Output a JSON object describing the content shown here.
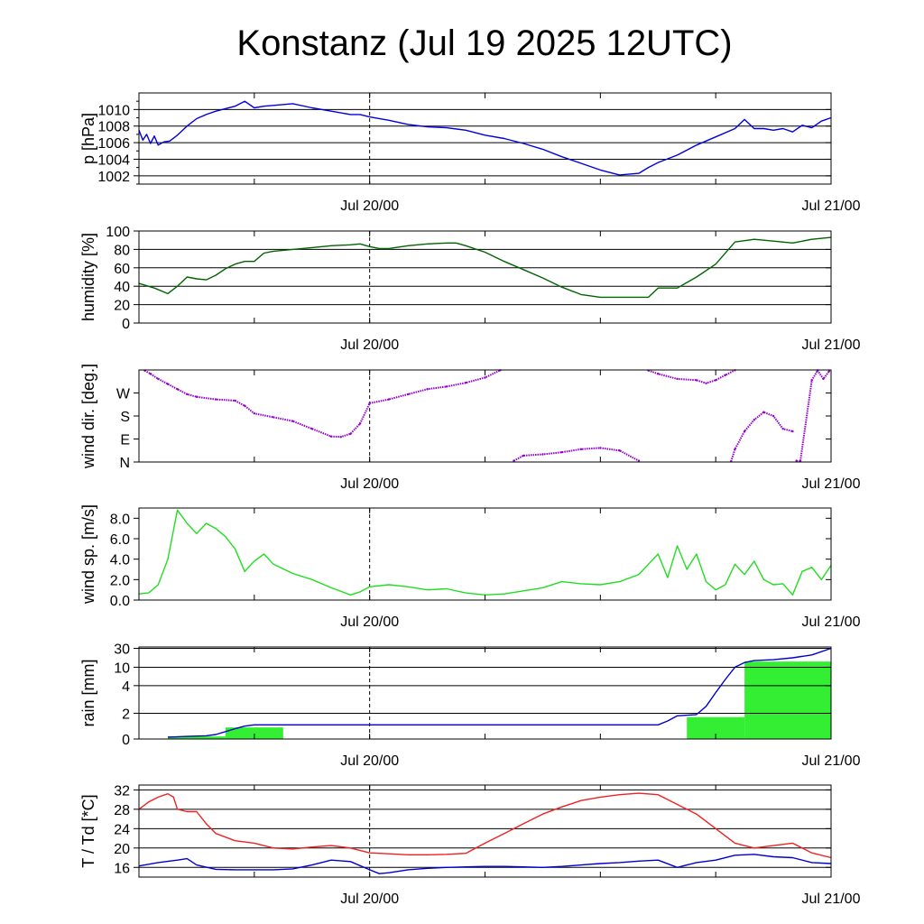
{
  "title": "Konstanz (Jul 19 2025 12UTC)",
  "colors": {
    "pressure": "#0000dd",
    "humidity": "#006400",
    "wind_dir": "#9400d3",
    "wind_speed": "#22dd22",
    "rain_bars": "#33ee33",
    "rain_cum": "#0000cc",
    "temperature": "#ee2222",
    "dewpoint": "#0000cc"
  },
  "chart_data": [
    {
      "id": "pressure",
      "type": "line",
      "ylabel": "p [hPa]",
      "x_range_hours": [
        0,
        36
      ],
      "xtick_labels": [
        "Jul 20/00",
        "Jul 21/00"
      ],
      "xtick_hours": [
        12,
        36
      ],
      "ylim": [
        1001,
        1012
      ],
      "yticks": [
        1002,
        1004,
        1006,
        1008,
        1010
      ],
      "ytick_labels": [
        "1002",
        "1004",
        "1006",
        "1008",
        "1010"
      ],
      "grid": true,
      "series": [
        {
          "color_key": "pressure",
          "x": [
            0,
            0.2,
            0.4,
            0.6,
            0.8,
            1.0,
            1.3,
            1.6,
            2.0,
            2.5,
            3.0,
            3.5,
            4.0,
            5.0,
            5.5,
            6.0,
            6.5,
            7.0,
            8.0,
            9.0,
            10.0,
            11.0,
            11.5,
            12.0,
            13.0,
            14.0,
            15.0,
            16.0,
            17.0,
            18.0,
            19.0,
            20.0,
            21.0,
            22.0,
            23.0,
            24.0,
            25.0,
            26.0,
            26.5,
            27.0,
            28.0,
            29.0,
            30.0,
            31.0,
            31.5,
            32.0,
            32.5,
            33.0,
            33.5,
            34.0,
            34.5,
            35.0,
            35.5,
            36.0
          ],
          "y": [
            1007.5,
            1006.3,
            1007.0,
            1005.9,
            1006.8,
            1005.7,
            1006.1,
            1006.2,
            1006.9,
            1008.0,
            1008.9,
            1009.4,
            1009.8,
            1010.4,
            1011.0,
            1010.2,
            1010.4,
            1010.5,
            1010.7,
            1010.2,
            1009.8,
            1009.4,
            1009.4,
            1009.1,
            1008.7,
            1008.2,
            1007.9,
            1007.8,
            1007.5,
            1006.9,
            1006.5,
            1005.9,
            1005.2,
            1004.3,
            1003.5,
            1002.7,
            1002.1,
            1002.3,
            1003.0,
            1003.6,
            1004.5,
            1005.7,
            1006.7,
            1007.7,
            1008.8,
            1007.7,
            1007.7,
            1007.5,
            1007.7,
            1007.3,
            1008.1,
            1007.8,
            1008.6,
            1009.0
          ]
        }
      ]
    },
    {
      "id": "humidity",
      "type": "line",
      "ylabel": "humidity [%]",
      "x_range_hours": [
        0,
        36
      ],
      "xtick_labels": [
        "Jul 20/00",
        "Jul 21/00"
      ],
      "xtick_hours": [
        12,
        36
      ],
      "ylim": [
        0,
        100
      ],
      "yticks": [
        0,
        20,
        40,
        60,
        80,
        100
      ],
      "ytick_labels": [
        "0",
        "20",
        "40",
        "60",
        "80",
        "100"
      ],
      "grid": true,
      "series": [
        {
          "color_key": "humidity",
          "x": [
            0,
            0.8,
            1.5,
            2.0,
            2.5,
            3.0,
            3.5,
            4.0,
            4.5,
            5.0,
            5.5,
            6.0,
            6.5,
            7.0,
            8.0,
            9.0,
            10.0,
            11.0,
            11.5,
            12.0,
            12.5,
            13.0,
            14.0,
            15.0,
            16.0,
            16.5,
            17.0,
            18.0,
            19.0,
            20.0,
            21.0,
            22.0,
            23.0,
            24.0,
            25.0,
            26.0,
            26.5,
            27.0,
            27.5,
            28.0,
            29.0,
            30.0,
            31.0,
            32.0,
            33.0,
            34.0,
            35.0,
            36.0
          ],
          "y": [
            43,
            38,
            32,
            40,
            50,
            48,
            47,
            52,
            59,
            64,
            67,
            67,
            76,
            78,
            80,
            82,
            84,
            85,
            86,
            83,
            81,
            81,
            84,
            86,
            87,
            87,
            84,
            77,
            67,
            58,
            49,
            39,
            31,
            28,
            28,
            28,
            28,
            38,
            38,
            38,
            50,
            64,
            88,
            91,
            89,
            87,
            91,
            93
          ]
        }
      ]
    },
    {
      "id": "wind_dir",
      "type": "scatter",
      "ylabel": "wind dir. [deg.]",
      "x_range_hours": [
        0,
        36
      ],
      "xtick_labels": [
        "Jul 20/00",
        "Jul 21/00"
      ],
      "xtick_hours": [
        12,
        36
      ],
      "ylim": [
        0,
        360
      ],
      "yticks": [
        0,
        90,
        180,
        270
      ],
      "ytick_labels": [
        "N",
        "E",
        "S",
        "W"
      ],
      "grid": false,
      "series": [
        {
          "color_key": "wind_dir",
          "x": [
            0.3,
            0.6,
            1.0,
            1.5,
            2.0,
            2.5,
            3.0,
            4.0,
            5.0,
            5.5,
            6.0,
            7.0,
            8.0,
            9.0,
            10.0,
            10.5,
            11.0,
            11.5,
            12.0,
            13.0,
            14.0,
            15.0,
            16.0,
            17.0,
            18.0,
            18.8
          ],
          "y": [
            358,
            345,
            325,
            305,
            285,
            265,
            255,
            245,
            240,
            220,
            190,
            175,
            160,
            130,
            100,
            98,
            110,
            150,
            230,
            245,
            265,
            285,
            295,
            310,
            330,
            359
          ]
        },
        {
          "color_key": "wind_dir",
          "x": [
            19.5,
            20.0,
            21.0,
            22.0,
            23.0,
            24.0,
            25.0,
            26.0
          ],
          "y": [
            5,
            25,
            30,
            38,
            50,
            55,
            45,
            5
          ]
        },
        {
          "color_key": "wind_dir",
          "x": [
            26.5,
            27.0,
            28.0,
            29.0,
            29.5,
            30.0,
            30.5,
            31.0
          ],
          "y": [
            358,
            345,
            325,
            320,
            308,
            320,
            340,
            359
          ]
        },
        {
          "color_key": "wind_dir",
          "x": [
            30.8,
            31.0,
            31.5,
            32.0,
            32.5,
            33.0,
            33.5,
            34.0
          ],
          "y": [
            2,
            50,
            120,
            165,
            195,
            180,
            130,
            120
          ]
        },
        {
          "color_key": "wind_dir",
          "x": [
            34.2,
            34.4,
            35.0,
            35.3,
            35.6,
            35.9
          ],
          "y": [
            5,
            2,
            320,
            358,
            325,
            355
          ]
        }
      ]
    },
    {
      "id": "wind_speed",
      "type": "line",
      "ylabel": "wind sp. [m/s]",
      "x_range_hours": [
        0,
        36
      ],
      "xtick_labels": [
        "Jul 20/00",
        "Jul 21/00"
      ],
      "xtick_hours": [
        12,
        36
      ],
      "ylim": [
        0,
        9
      ],
      "yticks": [
        0,
        2,
        4,
        6,
        8
      ],
      "ytick_labels": [
        "0.0",
        "2.0",
        "4.0",
        "6.0",
        "8.0"
      ],
      "grid": false,
      "series": [
        {
          "color_key": "wind_speed",
          "x": [
            0,
            0.5,
            1.0,
            1.5,
            2.0,
            2.5,
            3.0,
            3.5,
            4.0,
            4.5,
            5.0,
            5.5,
            6.0,
            6.5,
            7.0,
            8.0,
            9.0,
            10.0,
            11.0,
            11.5,
            12.0,
            13.0,
            14.0,
            15.0,
            16.0,
            17.0,
            18.0,
            19.0,
            20.0,
            21.0,
            22.0,
            23.0,
            24.0,
            25.0,
            26.0,
            27.0,
            27.5,
            28.0,
            28.5,
            29.0,
            29.5,
            30.0,
            30.5,
            31.0,
            31.5,
            32.0,
            32.5,
            33.0,
            33.5,
            34.0,
            34.5,
            35.0,
            35.5,
            36.0
          ],
          "y": [
            0.6,
            0.7,
            1.5,
            4.0,
            8.8,
            7.5,
            6.5,
            7.5,
            7.0,
            6.2,
            5.0,
            2.8,
            3.8,
            4.5,
            3.5,
            2.6,
            2.0,
            1.2,
            0.5,
            0.8,
            1.3,
            1.5,
            1.3,
            1.0,
            1.1,
            0.7,
            0.5,
            0.6,
            0.9,
            1.2,
            1.8,
            1.6,
            1.5,
            1.8,
            2.5,
            4.5,
            2.2,
            5.3,
            3.0,
            4.5,
            1.8,
            1.0,
            1.5,
            3.5,
            2.5,
            3.8,
            2.0,
            1.5,
            1.6,
            0.5,
            2.8,
            3.2,
            2.0,
            3.4
          ]
        }
      ]
    },
    {
      "id": "rain",
      "type": "bar",
      "ylabel": "rain [mm]",
      "x_range_hours": [
        0,
        36
      ],
      "xtick_labels": [
        "Jul 20/00",
        "Jul 21/00"
      ],
      "xtick_hours": [
        12,
        36
      ],
      "ylim": [
        0,
        30
      ],
      "yticks": [
        0,
        2,
        4,
        10,
        30
      ],
      "ytick_labels": [
        "0",
        "2",
        "4",
        "10",
        "30"
      ],
      "grid": true,
      "bars": [
        {
          "x0": 1.5,
          "x1": 4.5,
          "value": 0.2
        },
        {
          "x0": 4.5,
          "x1": 7.5,
          "value": 0.9
        },
        {
          "x0": 28.5,
          "x1": 31.5,
          "value": 1.7
        },
        {
          "x0": 31.5,
          "x1": 36.0,
          "value": 16.0
        }
      ],
      "series": [
        {
          "color_key": "rain_cum",
          "x": [
            1.5,
            2.5,
            3.5,
            4.0,
            5.0,
            5.5,
            6.0,
            7.0,
            12.0,
            20.0,
            26.0,
            27.0,
            27.5,
            28.0,
            29.0,
            29.5,
            30.0,
            30.5,
            31.0,
            31.5,
            32.0,
            33.0,
            34.0,
            35.0,
            36.0
          ],
          "y": [
            0.15,
            0.2,
            0.25,
            0.35,
            0.8,
            1.0,
            1.1,
            1.1,
            1.1,
            1.1,
            1.1,
            1.1,
            1.4,
            1.8,
            1.9,
            2.5,
            3.5,
            6.0,
            10.0,
            15.0,
            17.0,
            18.0,
            20.0,
            23.0,
            30.0
          ]
        }
      ]
    },
    {
      "id": "temperature",
      "type": "line",
      "ylabel": "T / Td [*C]",
      "x_range_hours": [
        0,
        36
      ],
      "xtick_labels": [
        "Jul 20/00",
        "Jul 21/00"
      ],
      "xtick_hours": [
        12,
        36
      ],
      "ylim": [
        14,
        33
      ],
      "yticks": [
        16,
        20,
        24,
        28,
        32
      ],
      "ytick_labels": [
        "16",
        "20",
        "24",
        "28",
        "32"
      ],
      "grid": true,
      "series": [
        {
          "name": "T",
          "color_key": "temperature",
          "x": [
            0,
            0.5,
            1.0,
            1.5,
            1.8,
            2.0,
            2.5,
            3.0,
            3.5,
            4.0,
            5.0,
            6.0,
            7.0,
            8.0,
            9.0,
            10.0,
            11.0,
            12.0,
            13.0,
            14.0,
            15.0,
            16.0,
            17.0,
            18.0,
            19.0,
            20.0,
            21.0,
            22.0,
            23.0,
            24.0,
            25.0,
            26.0,
            27.0,
            28.0,
            29.0,
            30.0,
            31.0,
            32.0,
            33.0,
            34.0,
            35.0,
            36.0
          ],
          "y": [
            28,
            29.5,
            30.5,
            31.2,
            30.5,
            28,
            27.5,
            27.5,
            25,
            23,
            21.5,
            21,
            20,
            19.8,
            20.2,
            20.5,
            20.0,
            19,
            18.8,
            18.6,
            18.6,
            18.7,
            18.9,
            21,
            23,
            25,
            27,
            28.5,
            29.8,
            30.5,
            31,
            31.3,
            31.0,
            29,
            27,
            24,
            21,
            20,
            20.5,
            21,
            19,
            18
          ]
        },
        {
          "name": "Td",
          "color_key": "dewpoint",
          "x": [
            0,
            1.0,
            2.0,
            2.5,
            3.0,
            4.0,
            5.0,
            6.0,
            7.0,
            8.0,
            9.0,
            10.0,
            11.0,
            12.0,
            12.5,
            13.0,
            14.0,
            15.0,
            16.0,
            17.0,
            18.0,
            19.0,
            20.0,
            21.0,
            22.0,
            23.0,
            24.0,
            25.0,
            26.0,
            27.0,
            28.0,
            29.0,
            30.0,
            31.0,
            32.0,
            33.0,
            34.0,
            35.0,
            36.0
          ],
          "y": [
            16.3,
            17.0,
            17.5,
            17.8,
            16.5,
            15.6,
            15.5,
            15.5,
            15.5,
            15.7,
            16.5,
            17.5,
            17.2,
            15.5,
            14.7,
            14.9,
            15.5,
            15.8,
            16.0,
            16.1,
            16.2,
            16.2,
            16.1,
            16.0,
            16.2,
            16.5,
            16.8,
            17.0,
            17.3,
            17.5,
            16.0,
            17.0,
            17.5,
            18.5,
            18.7,
            18.2,
            18.0,
            17.0,
            16.8
          ]
        }
      ]
    }
  ]
}
